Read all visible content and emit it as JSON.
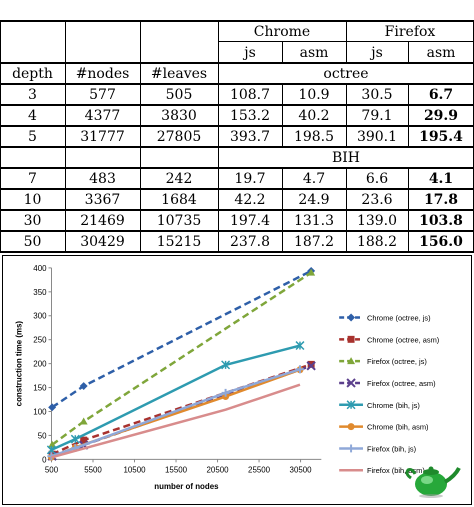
{
  "table": {
    "browser_headers": [
      "Chrome",
      "Firefox"
    ],
    "sub_headers": [
      "js",
      "asm",
      "js",
      "asm"
    ],
    "col_headers": [
      "depth",
      "#nodes",
      "#leaves"
    ],
    "sections": [
      {
        "label": "octree",
        "rows": [
          {
            "cells": [
              "3",
              "577",
              "505",
              "108.7",
              "10.9",
              "30.5",
              "6.7"
            ]
          },
          {
            "cells": [
              "4",
              "4377",
              "3830",
              "153.2",
              "40.2",
              "79.1",
              "29.9"
            ]
          },
          {
            "cells": [
              "5",
              "31777",
              "27805",
              "393.7",
              "198.5",
              "390.1",
              "195.4"
            ]
          }
        ]
      },
      {
        "label": "BIH",
        "rows": [
          {
            "cells": [
              "7",
              "483",
              "242",
              "19.7",
              "4.7",
              "6.6",
              "4.1"
            ]
          },
          {
            "cells": [
              "10",
              "3367",
              "1684",
              "42.2",
              "24.9",
              "23.6",
              "17.8"
            ]
          },
          {
            "cells": [
              "30",
              "21469",
              "10735",
              "197.4",
              "131.3",
              "139.0",
              "103.8"
            ]
          },
          {
            "cells": [
              "50",
              "30429",
              "15215",
              "237.8",
              "187.2",
              "188.2",
              "156.0"
            ]
          }
        ]
      }
    ]
  },
  "chart_data": {
    "type": "line",
    "ylabel": "construction time (ms)",
    "xlabel": "number of nodes",
    "xticks": [
      500,
      5500,
      10500,
      15500,
      20500,
      25500,
      30500
    ],
    "yticks": [
      0,
      50,
      100,
      150,
      200,
      250,
      300,
      350,
      400
    ],
    "xlim": [
      500,
      33000
    ],
    "ylim": [
      0,
      400
    ],
    "legend_position": "right",
    "series": [
      {
        "name": "Chrome (octree, js)",
        "color": "#2E5FA8",
        "dash": "dash",
        "marker": "diamond",
        "x": [
          577,
          4377,
          31777
        ],
        "y": [
          108.7,
          153.2,
          393.7
        ]
      },
      {
        "name": "Chrome (octree, asm)",
        "color": "#A8322E",
        "dash": "dash",
        "marker": "square",
        "x": [
          577,
          4377,
          31777
        ],
        "y": [
          10.9,
          40.2,
          198.5
        ]
      },
      {
        "name": "Firefox (octree, js)",
        "color": "#7FA63A",
        "dash": "dash",
        "marker": "triangle",
        "x": [
          577,
          4377,
          31777
        ],
        "y": [
          30.5,
          79.1,
          390.1
        ]
      },
      {
        "name": "Firefox (octree, asm)",
        "color": "#5B3F8C",
        "dash": "dash",
        "marker": "x",
        "x": [
          577,
          4377,
          31777
        ],
        "y": [
          6.7,
          29.9,
          195.4
        ]
      },
      {
        "name": "Chrome (bih, js)",
        "color": "#2E9BB0",
        "dash": "solid",
        "marker": "star",
        "x": [
          483,
          3367,
          21469,
          30429
        ],
        "y": [
          19.7,
          42.2,
          197.4,
          237.8
        ]
      },
      {
        "name": "Chrome (bih, asm)",
        "color": "#E08A2E",
        "dash": "solid",
        "marker": "circle",
        "x": [
          483,
          3367,
          21469,
          30429
        ],
        "y": [
          4.7,
          24.9,
          131.3,
          187.2
        ]
      },
      {
        "name": "Firefox (bih, js)",
        "color": "#8FA8D8",
        "dash": "solid",
        "marker": "plus",
        "x": [
          483,
          3367,
          21469,
          30429
        ],
        "y": [
          6.6,
          23.6,
          139.0,
          188.2
        ]
      },
      {
        "name": "Firefox (bih, asm)",
        "color": "#D88C8C",
        "dash": "solid",
        "marker": "none",
        "x": [
          483,
          3367,
          21469,
          30429
        ],
        "y": [
          4.1,
          17.8,
          103.8,
          156.0
        ]
      }
    ]
  }
}
